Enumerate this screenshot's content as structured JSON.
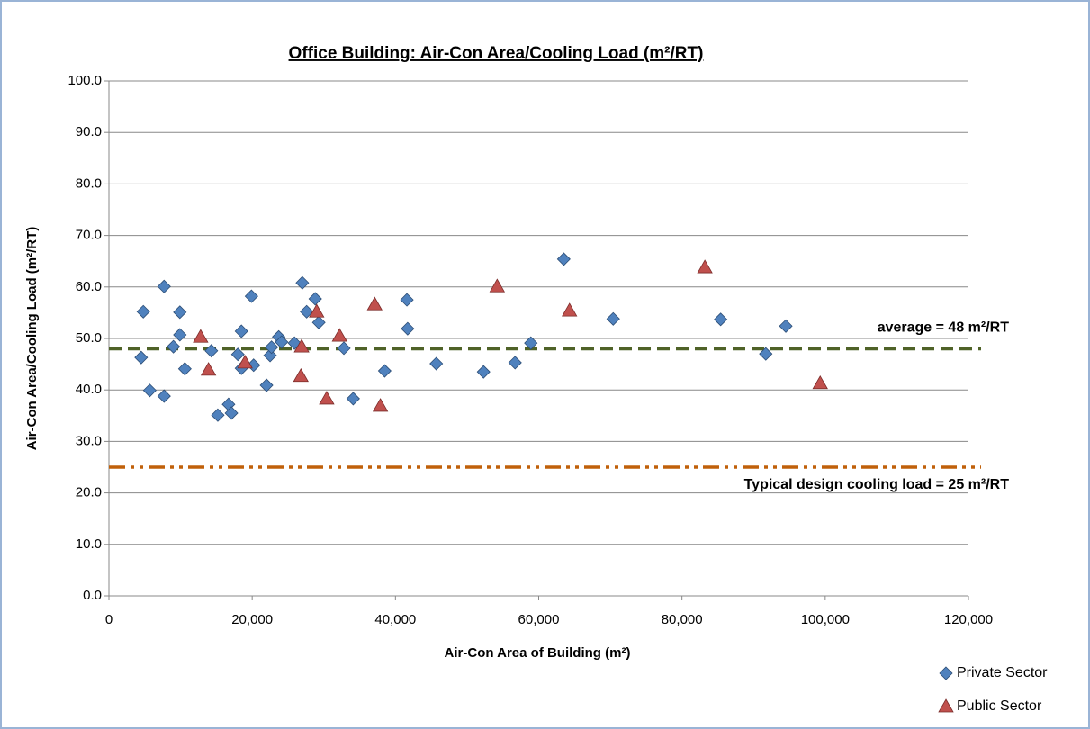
{
  "chart_data": {
    "type": "scatter",
    "title": "Office Building: Air-Con Area/Cooling Load (m²/RT)",
    "x_label": "Air-Con Area of Building (m²)",
    "y_label": "Air-Con Area/Cooling Load (m²/RT)",
    "xlim": [
      0,
      120000
    ],
    "xticks": [
      0,
      {
        "value": 20000,
        "label": "20,000"
      },
      {
        "value": 40000,
        "label": "40,000"
      },
      {
        "value": 60000,
        "label": "60,000"
      },
      {
        "value": 80000,
        "label": "80,000"
      },
      {
        "value": 100000,
        "label": "100,000"
      },
      {
        "value": 120000,
        "label": "120,000"
      }
    ],
    "ylim": [
      0,
      100
    ],
    "yticks": [
      {
        "value": 0,
        "label": "0.0"
      },
      {
        "value": 10,
        "label": "10.0"
      },
      {
        "value": 20,
        "label": "20.0"
      },
      {
        "value": 30,
        "label": "30.0"
      },
      {
        "value": 40,
        "label": "40.0"
      },
      {
        "value": 50,
        "label": "50.0"
      },
      {
        "value": 60,
        "label": "60.0"
      },
      {
        "value": 70,
        "label": "70.0"
      },
      {
        "value": 80,
        "label": "80.0"
      },
      {
        "value": 90,
        "label": "90.0"
      },
      {
        "value": {
          "value": 100,
          "label": "100.0"
        },
        "label": "100.0"
      }
    ],
    "grid": true,
    "series": [
      {
        "name": "Private Sector",
        "color": "#4f81bd",
        "marker": "diamond",
        "x": [
          4500,
          4800,
          5700,
          7700,
          7700,
          9000,
          9900,
          9900,
          10600,
          14300,
          15200,
          16700,
          17100,
          18000,
          18500,
          18500,
          19900,
          20200,
          22000,
          22500,
          22700,
          23700,
          24100,
          25900,
          27000,
          27600,
          28800,
          29300,
          32800,
          34100,
          38500,
          41600,
          41700,
          45700,
          52300,
          56700,
          58900,
          63500,
          70400,
          85400,
          91700,
          94500
        ],
        "values": [
          46.3,
          55.2,
          39.9,
          60.1,
          38.8,
          48.4,
          55.1,
          50.7,
          44.1,
          47.6,
          35.1,
          37.2,
          35.5,
          46.9,
          51.4,
          44.2,
          58.2,
          44.8,
          40.9,
          46.7,
          48.3,
          50.3,
          49.3,
          49.1,
          60.8,
          55.2,
          57.7,
          53.1,
          48.1,
          38.3,
          43.7,
          57.5,
          51.9,
          45.1,
          43.5,
          45.3,
          49.1,
          65.4,
          53.8,
          53.7,
          47.0,
          52.4
        ]
      },
      {
        "name": "Public Sector",
        "color": "#c0504d",
        "marker": "triangle",
        "x": [
          12800,
          13900,
          19000,
          26900,
          26800,
          29000,
          30400,
          32200,
          37100,
          37900,
          54200,
          64300,
          83200,
          99300
        ],
        "values": [
          50.3,
          43.9,
          45.3,
          48.4,
          42.7,
          55.2,
          38.3,
          50.5,
          56.6,
          36.9,
          60.1,
          55.4,
          63.8,
          41.3
        ]
      }
    ],
    "reference_lines": [
      {
        "label": "average = 48 m²/RT",
        "value": 48,
        "color": "#4f6228",
        "dash": "dashed"
      },
      {
        "label": "Typical design cooling load = 25 m²/RT",
        "value": 25,
        "color": "#c0600a",
        "dash": "dash-dot-dot"
      }
    ],
    "legend": "bottom-right"
  }
}
